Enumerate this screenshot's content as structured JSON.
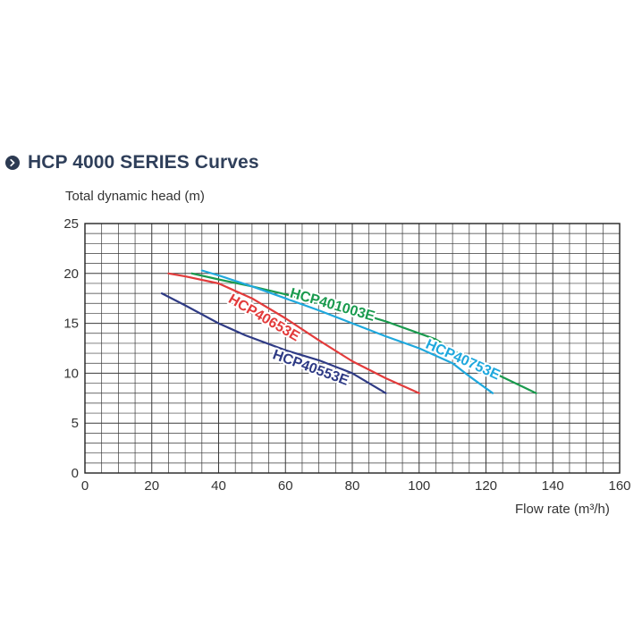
{
  "chart_data": {
    "type": "line",
    "title": "HCP 4000 SERIES Curves",
    "ylabel": "Total dynamic head (m)",
    "xlabel": "Flow rate (m³/h)",
    "xlim": [
      0,
      160
    ],
    "ylim": [
      0,
      25
    ],
    "xticks": [
      0,
      20,
      40,
      60,
      80,
      100,
      120,
      140,
      160
    ],
    "yticks": [
      0,
      5,
      10,
      15,
      20,
      25
    ],
    "grid": true,
    "series": [
      {
        "name": "HCP401003E",
        "color": "#1a9a4e",
        "label_color": "#1a9a4e",
        "points": [
          [
            32,
            20
          ],
          [
            40,
            19.4
          ],
          [
            50,
            18.7
          ],
          [
            60,
            17.9
          ],
          [
            70,
            17
          ],
          [
            80,
            16.2
          ],
          [
            90,
            15.2
          ],
          [
            100,
            14
          ],
          [
            105,
            13.4
          ],
          [
            110,
            12.3
          ],
          [
            120,
            10.4
          ],
          [
            130,
            8.8
          ],
          [
            135,
            8
          ]
        ]
      },
      {
        "name": "HCP40753E",
        "color": "#1fa8dd",
        "label_color": "#1fa8dd",
        "points": [
          [
            35,
            20.3
          ],
          [
            40,
            19.8
          ],
          [
            50,
            18.7
          ],
          [
            60,
            17.5
          ],
          [
            70,
            16.3
          ],
          [
            80,
            15
          ],
          [
            90,
            13.7
          ],
          [
            100,
            12.5
          ],
          [
            110,
            11
          ],
          [
            115,
            9.7
          ],
          [
            122,
            8
          ]
        ]
      },
      {
        "name": "HCP40653E",
        "color": "#e23b3b",
        "label_color": "#e23b3b",
        "points": [
          [
            25,
            20
          ],
          [
            30,
            19.7
          ],
          [
            40,
            19
          ],
          [
            50,
            17.5
          ],
          [
            60,
            15.5
          ],
          [
            70,
            13.3
          ],
          [
            80,
            11.2
          ],
          [
            90,
            9.5
          ],
          [
            100,
            8
          ]
        ]
      },
      {
        "name": "HCP40553E",
        "color": "#2f3b85",
        "label_color": "#2f3b85",
        "points": [
          [
            23,
            18
          ],
          [
            30,
            16.8
          ],
          [
            40,
            15
          ],
          [
            48,
            13.8
          ],
          [
            60,
            12.3
          ],
          [
            70,
            11.3
          ],
          [
            80,
            10
          ],
          [
            85,
            9
          ],
          [
            90,
            8
          ]
        ]
      }
    ]
  }
}
